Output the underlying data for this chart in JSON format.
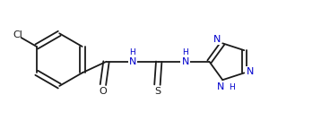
{
  "bg_color": "#ffffff",
  "line_color": "#1a1a1a",
  "heteroatom_color": "#0000cd",
  "lw": 1.3,
  "figsize": [
    3.58,
    1.44
  ],
  "dpi": 100,
  "xlim": [
    0,
    10
  ],
  "ylim": [
    0,
    4
  ]
}
